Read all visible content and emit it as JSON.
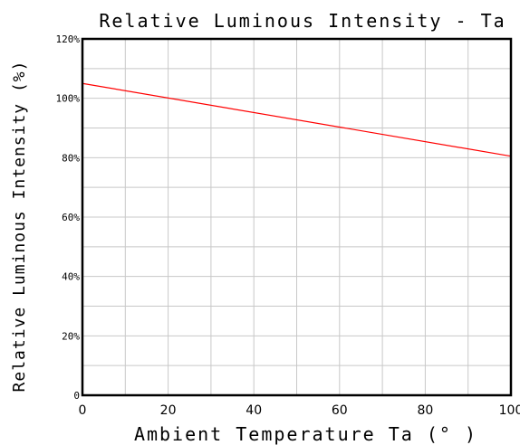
{
  "chart_data": {
    "type": "line",
    "title": "Relative Luminous Intensity - Ta",
    "xlabel": "Ambient Temperature Ta (° )",
    "ylabel": "Relative Luminous Intensity (%)",
    "xlim": [
      0,
      100
    ],
    "ylim": [
      0,
      120
    ],
    "xticks": [
      0,
      20,
      40,
      60,
      80,
      100
    ],
    "xtick_labels": [
      "0",
      "20",
      "40",
      "60",
      "80",
      "100"
    ],
    "yticks": [
      0,
      20,
      40,
      60,
      80,
      100,
      120
    ],
    "ytick_labels": [
      "0",
      "20%",
      "40%",
      "60%",
      "80%",
      "100%",
      "120%"
    ],
    "x_grid_step": 10,
    "y_grid_step": 10,
    "grid": true,
    "series": [
      {
        "color": "#ff0000",
        "x": [
          0,
          100
        ],
        "y": [
          105,
          80.5
        ]
      }
    ]
  }
}
